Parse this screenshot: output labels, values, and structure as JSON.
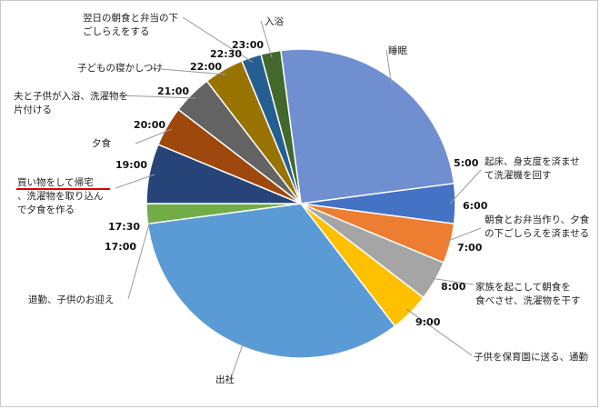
{
  "chart_data": {
    "type": "pie",
    "title": "",
    "colors": {
      "red_underline": "#e00000"
    },
    "categories": [
      "睡眠",
      "起床、身支度を済ませて洗濯機を回す",
      "朝食とお弁当作り、夕食の下ごしらえを済ませる",
      "家族を起こして朝食を食べさせ、洗濯物を干す",
      "子供を保育園に送る、通勤",
      "出社",
      "退勤、子供のお迎え",
      "買い物をして帰宅、洗濯物を取り込んで夕食を作る",
      "夕食",
      "夫と子供が入浴、洗濯物を片付ける",
      "子どもの寝かしつけ",
      "翌日の朝食と弁当の下ごしらえをする",
      "入浴"
    ],
    "values": [
      6,
      1,
      1,
      1,
      1,
      8,
      0.5,
      1.5,
      1,
      1,
      1,
      0.5,
      0.5
    ],
    "slice_colors": [
      "#6f8fd0",
      "#4472c4",
      "#ed7d31",
      "#a5a5a5",
      "#ffc000",
      "#5b9bd5",
      "#70ad47",
      "#264478",
      "#9e480e",
      "#636363",
      "#997300",
      "#255e91",
      "#43682b"
    ],
    "time_ticks": [
      "5:00",
      "6:00",
      "7:00",
      "8:00",
      "9:00",
      "17:00",
      "17:30",
      "19:00",
      "20:00",
      "21:00",
      "22:00",
      "22:30",
      "23:00"
    ]
  }
}
